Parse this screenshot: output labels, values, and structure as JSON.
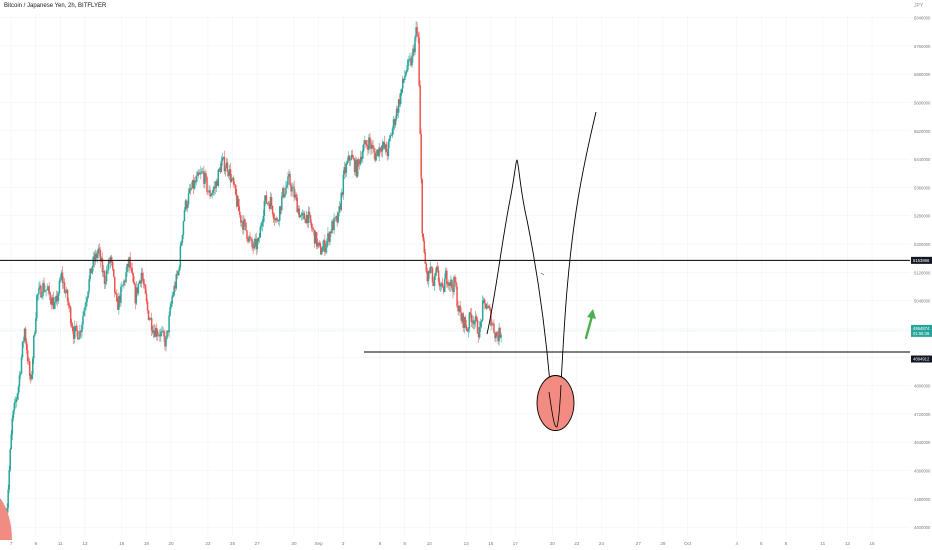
{
  "header": {
    "title": "Bitcoin / Japanese Yen, 2h, BITFLYER",
    "corner_label": "JPY"
  },
  "colors": {
    "up": "#26a69a",
    "down": "#ef5350",
    "drawing": "#000000",
    "circle_fill": "#f28b82",
    "arrow": "#4caf50",
    "grid": "#f0f3fa",
    "axis_text": "#787b86",
    "current_line": "#26a69a"
  },
  "chart_data": {
    "type": "candlestick",
    "title": "Bitcoin / Japanese Yen, 2h, BITFLYER",
    "ylim": [
      4375000,
      5850000
    ],
    "y_ticks": [
      "5840000",
      "5760000",
      "5680000",
      "5600000",
      "5520000",
      "5440000",
      "5360000",
      "5280000",
      "5200000",
      "5120000",
      "5040000",
      "4960000",
      "4880000",
      "4800000",
      "4720000",
      "4640000",
      "4560000",
      "4480000",
      "4400000"
    ],
    "x_ticks": [
      {
        "label": "7",
        "pos": 0
      },
      {
        "label": "9",
        "pos": 24
      },
      {
        "label": "11",
        "pos": 48
      },
      {
        "label": "13",
        "pos": 72
      },
      {
        "label": "16",
        "pos": 108
      },
      {
        "label": "18",
        "pos": 132
      },
      {
        "label": "20",
        "pos": 156
      },
      {
        "label": "23",
        "pos": 192
      },
      {
        "label": "25",
        "pos": 216
      },
      {
        "label": "27",
        "pos": 240
      },
      {
        "label": "30",
        "pos": 276
      },
      {
        "label": "Sep",
        "pos": 300
      },
      {
        "label": "3",
        "pos": 324
      },
      {
        "label": "6",
        "pos": 360
      },
      {
        "label": "8",
        "pos": 384
      },
      {
        "label": "10",
        "pos": 408
      },
      {
        "label": "13",
        "pos": 444
      },
      {
        "label": "15",
        "pos": 468
      },
      {
        "label": "17",
        "pos": 492
      },
      {
        "label": "20",
        "pos": 528
      },
      {
        "label": "22",
        "pos": 552
      },
      {
        "label": "24",
        "pos": 576
      },
      {
        "label": "27",
        "pos": 612
      },
      {
        "label": "29",
        "pos": 636
      },
      {
        "label": "Oct",
        "pos": 660
      },
      {
        "label": "4",
        "pos": 708
      },
      {
        "label": "6",
        "pos": 732
      },
      {
        "label": "8",
        "pos": 756
      },
      {
        "label": "11",
        "pos": 792
      },
      {
        "label": "13",
        "pos": 816
      },
      {
        "label": "15",
        "pos": 840
      }
    ],
    "x_range": [
      -5,
      880
    ],
    "anchors": [
      {
        "i": 0,
        "p": 4420000
      },
      {
        "i": 6,
        "p": 4700000
      },
      {
        "i": 12,
        "p": 4800000
      },
      {
        "i": 18,
        "p": 4960000
      },
      {
        "i": 24,
        "p": 4800000
      },
      {
        "i": 30,
        "p": 5050000
      },
      {
        "i": 36,
        "p": 5080000
      },
      {
        "i": 42,
        "p": 5060000
      },
      {
        "i": 48,
        "p": 5020000
      },
      {
        "i": 54,
        "p": 5110000
      },
      {
        "i": 60,
        "p": 5040000
      },
      {
        "i": 66,
        "p": 4950000
      },
      {
        "i": 72,
        "p": 4950000
      },
      {
        "i": 78,
        "p": 5050000
      },
      {
        "i": 84,
        "p": 5140000
      },
      {
        "i": 90,
        "p": 5180000
      },
      {
        "i": 96,
        "p": 5100000
      },
      {
        "i": 102,
        "p": 5160000
      },
      {
        "i": 108,
        "p": 5020000
      },
      {
        "i": 114,
        "p": 5080000
      },
      {
        "i": 120,
        "p": 5150000
      },
      {
        "i": 126,
        "p": 5050000
      },
      {
        "i": 132,
        "p": 5120000
      },
      {
        "i": 138,
        "p": 5010000
      },
      {
        "i": 144,
        "p": 4960000
      },
      {
        "i": 150,
        "p": 4950000
      },
      {
        "i": 156,
        "p": 4920000
      },
      {
        "i": 162,
        "p": 5050000
      },
      {
        "i": 168,
        "p": 5120000
      },
      {
        "i": 174,
        "p": 5300000
      },
      {
        "i": 180,
        "p": 5350000
      },
      {
        "i": 186,
        "p": 5380000
      },
      {
        "i": 192,
        "p": 5400000
      },
      {
        "i": 198,
        "p": 5340000
      },
      {
        "i": 204,
        "p": 5360000
      },
      {
        "i": 210,
        "p": 5430000
      },
      {
        "i": 216,
        "p": 5420000
      },
      {
        "i": 222,
        "p": 5360000
      },
      {
        "i": 228,
        "p": 5280000
      },
      {
        "i": 234,
        "p": 5240000
      },
      {
        "i": 240,
        "p": 5190000
      },
      {
        "i": 246,
        "p": 5200000
      },
      {
        "i": 252,
        "p": 5320000
      },
      {
        "i": 258,
        "p": 5320000
      },
      {
        "i": 264,
        "p": 5260000
      },
      {
        "i": 270,
        "p": 5340000
      },
      {
        "i": 276,
        "p": 5380000
      },
      {
        "i": 282,
        "p": 5330000
      },
      {
        "i": 288,
        "p": 5270000
      },
      {
        "i": 294,
        "p": 5280000
      },
      {
        "i": 300,
        "p": 5230000
      },
      {
        "i": 306,
        "p": 5180000
      },
      {
        "i": 312,
        "p": 5200000
      },
      {
        "i": 318,
        "p": 5250000
      },
      {
        "i": 324,
        "p": 5270000
      },
      {
        "i": 330,
        "p": 5400000
      },
      {
        "i": 336,
        "p": 5450000
      },
      {
        "i": 342,
        "p": 5410000
      },
      {
        "i": 348,
        "p": 5470000
      },
      {
        "i": 354,
        "p": 5490000
      },
      {
        "i": 360,
        "p": 5450000
      },
      {
        "i": 366,
        "p": 5480000
      },
      {
        "i": 372,
        "p": 5460000
      },
      {
        "i": 378,
        "p": 5540000
      },
      {
        "i": 384,
        "p": 5610000
      },
      {
        "i": 390,
        "p": 5690000
      },
      {
        "i": 396,
        "p": 5720000
      },
      {
        "i": 400,
        "p": 5800000
      },
      {
        "i": 402,
        "p": 5780000
      },
      {
        "i": 404,
        "p": 5500000
      },
      {
        "i": 406,
        "p": 5250000
      },
      {
        "i": 408,
        "p": 5160000
      },
      {
        "i": 411,
        "p": 5100000
      },
      {
        "i": 414,
        "p": 5130000
      },
      {
        "i": 417,
        "p": 5080000
      },
      {
        "i": 420,
        "p": 5120000
      },
      {
        "i": 423,
        "p": 5090000
      },
      {
        "i": 426,
        "p": 5060000
      },
      {
        "i": 429,
        "p": 5110000
      },
      {
        "i": 432,
        "p": 5100000
      },
      {
        "i": 435,
        "p": 5080000
      },
      {
        "i": 438,
        "p": 5090000
      },
      {
        "i": 441,
        "p": 5020000
      },
      {
        "i": 444,
        "p": 4990000
      },
      {
        "i": 447,
        "p": 4980000
      },
      {
        "i": 450,
        "p": 4960000
      },
      {
        "i": 453,
        "p": 5000000
      },
      {
        "i": 456,
        "p": 4990000
      },
      {
        "i": 459,
        "p": 4970000
      },
      {
        "i": 462,
        "p": 4950000
      },
      {
        "i": 465,
        "p": 5020000
      },
      {
        "i": 468,
        "p": 5030000
      },
      {
        "i": 471,
        "p": 5010000
      },
      {
        "i": 474,
        "p": 4980000
      },
      {
        "i": 477,
        "p": 4950000
      },
      {
        "i": 480,
        "p": 4940000
      },
      {
        "i": 483,
        "p": 4955000
      }
    ],
    "price_labels": {
      "resistance": "5153866",
      "current_1": "4954574",
      "current_2": "01:55:36",
      "support": "4894912"
    },
    "levels": {
      "resistance": 5153866,
      "current": 4954574,
      "support": 4894912
    }
  }
}
